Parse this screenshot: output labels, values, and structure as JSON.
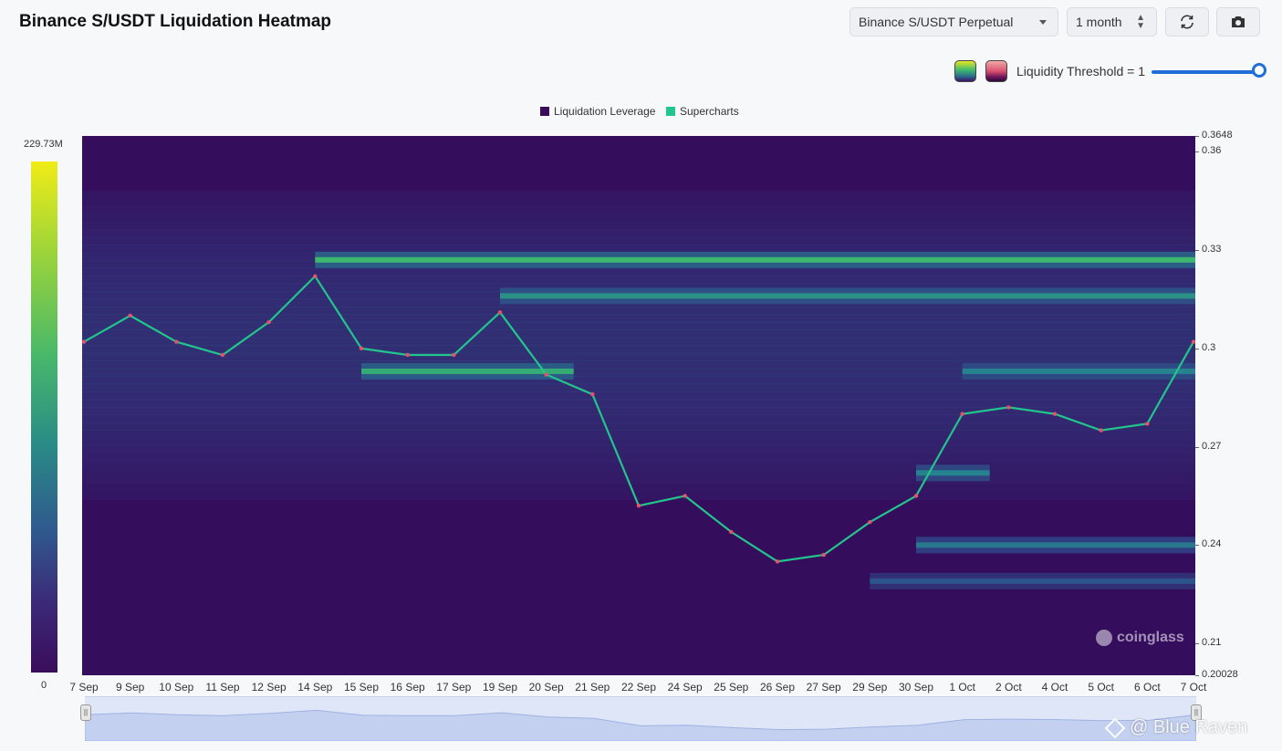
{
  "header": {
    "title": "Binance S/USDT Liquidation Heatmap",
    "pair_select": "Binance S/USDT Perpetual",
    "range_select": "1 month",
    "threshold_label": "Liquidity Threshold = 1",
    "threshold_value": 1,
    "reload_icon": "refresh-icon",
    "camera_icon": "camera-icon"
  },
  "legend": [
    {
      "label": "Liquidation Leverage",
      "color": "#3a0d5c"
    },
    {
      "label": "Supercharts",
      "color": "#22c58b"
    }
  ],
  "colorbar": {
    "max_label": "229.73M",
    "min_label": "0"
  },
  "watermarks": {
    "brand": "coinglass",
    "credit": "@ Blue Raven"
  },
  "chart_data": {
    "type": "heatmap",
    "title": "Binance S/USDT Liquidation Heatmap",
    "ylim": [
      0.20028,
      0.3648
    ],
    "y_ticks": [
      "0.3648",
      "0.36",
      "0.33",
      "0.3",
      "0.27",
      "0.24",
      "0.21",
      "0.20028"
    ],
    "x_ticks": [
      "7 Sep",
      "9 Sep",
      "10 Sep",
      "11 Sep",
      "12 Sep",
      "14 Sep",
      "15 Sep",
      "16 Sep",
      "17 Sep",
      "19 Sep",
      "20 Sep",
      "21 Sep",
      "22 Sep",
      "24 Sep",
      "25 Sep",
      "26 Sep",
      "27 Sep",
      "29 Sep",
      "30 Sep",
      "1 Oct",
      "2 Oct",
      "4 Oct",
      "5 Oct",
      "6 Oct",
      "7 Oct"
    ],
    "colorscale": {
      "min": 0,
      "max": 229730000,
      "max_label": "229.73M"
    },
    "liquidity_bands": [
      {
        "price": 0.327,
        "from": "14 Sep",
        "to": "7 Oct",
        "intensity": 0.75
      },
      {
        "price": 0.316,
        "from": "19 Sep",
        "to": "7 Oct",
        "intensity": 0.6
      },
      {
        "price": 0.293,
        "from": "15 Sep",
        "to": "20 Sep",
        "intensity": 0.7
      },
      {
        "price": 0.293,
        "from": "1 Oct",
        "to": "7 Oct",
        "intensity": 0.55
      },
      {
        "price": 0.262,
        "from": "30 Sep",
        "to": "1 Oct",
        "intensity": 0.55
      },
      {
        "price": 0.24,
        "from": "30 Sep",
        "to": "7 Oct",
        "intensity": 0.5
      },
      {
        "price": 0.229,
        "from": "29 Sep",
        "to": "7 Oct",
        "intensity": 0.35
      }
    ],
    "price_series": {
      "name": "Supercharts",
      "points": [
        [
          "7 Sep",
          0.302
        ],
        [
          "9 Sep",
          0.31
        ],
        [
          "10 Sep",
          0.302
        ],
        [
          "11 Sep",
          0.298
        ],
        [
          "12 Sep",
          0.308
        ],
        [
          "14 Sep",
          0.322
        ],
        [
          "15 Sep",
          0.3
        ],
        [
          "16 Sep",
          0.298
        ],
        [
          "17 Sep",
          0.298
        ],
        [
          "19 Sep",
          0.311
        ],
        [
          "20 Sep",
          0.292
        ],
        [
          "21 Sep",
          0.286
        ],
        [
          "22 Sep",
          0.252
        ],
        [
          "24 Sep",
          0.255
        ],
        [
          "25 Sep",
          0.244
        ],
        [
          "26 Sep",
          0.235
        ],
        [
          "27 Sep",
          0.237
        ],
        [
          "29 Sep",
          0.247
        ],
        [
          "30 Sep",
          0.255
        ],
        [
          "1 Oct",
          0.28
        ],
        [
          "2 Oct",
          0.282
        ],
        [
          "4 Oct",
          0.28
        ],
        [
          "5 Oct",
          0.275
        ],
        [
          "6 Oct",
          0.277
        ],
        [
          "7 Oct",
          0.302
        ]
      ]
    }
  }
}
